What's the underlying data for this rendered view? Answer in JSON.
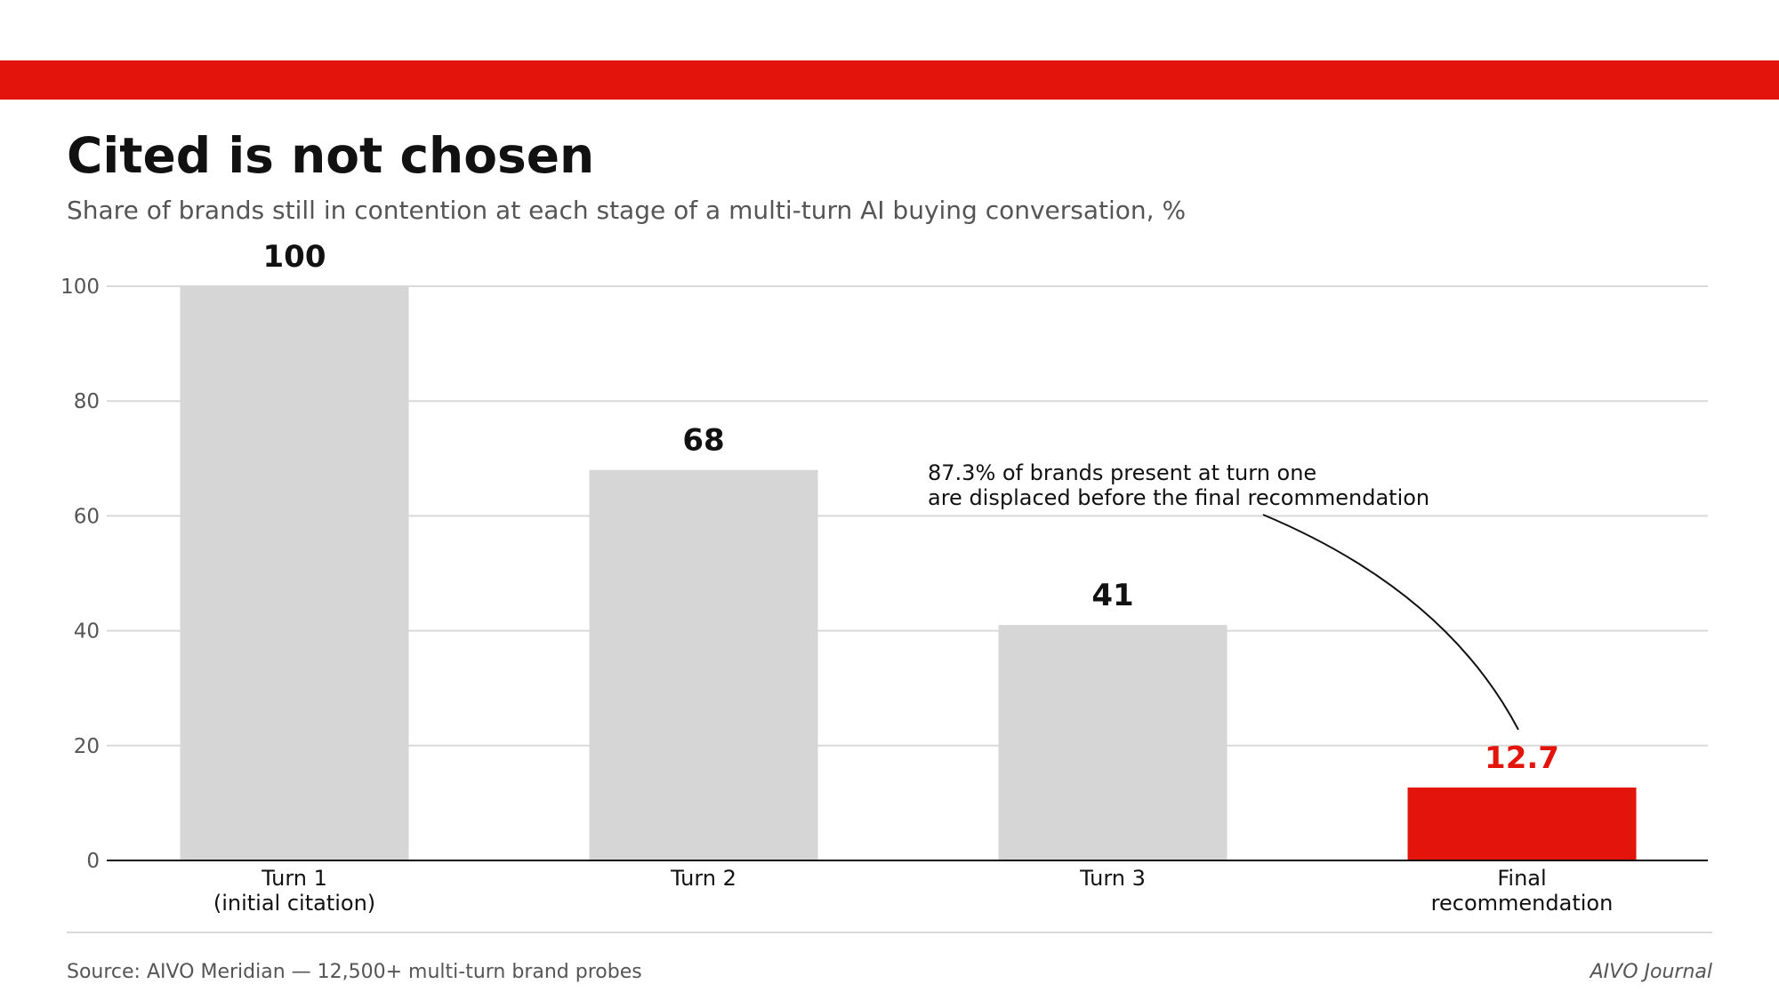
{
  "header": {
    "title": "Cited is not chosen",
    "subtitle": "Share of brands still in contention at each stage of a multi-turn AI buying conversation, %"
  },
  "colors": {
    "accent": "#e3140c",
    "bar_default": "#d6d6d6",
    "grid": "#d9d9d9",
    "text_dark": "#111111",
    "text_muted": "#555555"
  },
  "chart_data": {
    "type": "bar",
    "categories": [
      [
        "Turn 1",
        "(initial citation)"
      ],
      [
        "Turn 2"
      ],
      [
        "Turn 3"
      ],
      [
        "Final",
        "recommendation"
      ]
    ],
    "values": [
      100,
      68,
      41,
      12.7
    ],
    "value_labels": [
      "100",
      "68",
      "41",
      "12.7"
    ],
    "highlight_index": 3,
    "ylim": [
      0,
      100
    ],
    "yticks": [
      0,
      20,
      40,
      60,
      80,
      100
    ],
    "grid": true,
    "xlabel": "",
    "ylabel": "",
    "annotation": {
      "lines": [
        "87.3% of brands present at turn one",
        "are displaced before the final recommendation"
      ],
      "points_to_index": 3
    }
  },
  "footer": {
    "source": "Source: AIVO Meridian — 12,500+ multi-turn brand probes",
    "brand": "AIVO Journal"
  }
}
